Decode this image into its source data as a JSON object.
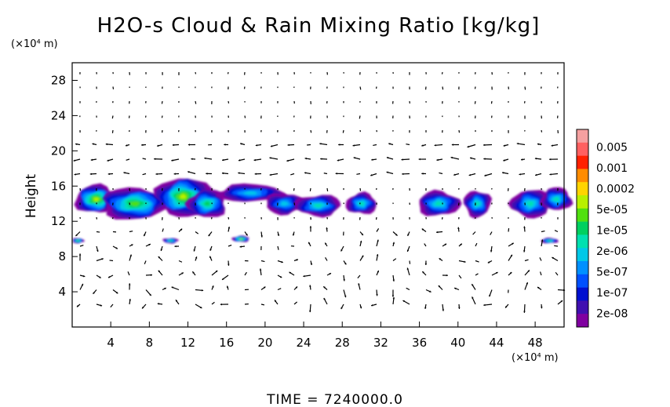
{
  "chart_data": {
    "type": "heatmap",
    "title": "H2O-s Cloud & Rain Mixing Ratio [kg/kg]",
    "ylabel": "Height",
    "y_unit": "(×10⁴ m)",
    "x_unit": "(×10⁴ m)",
    "xlim": [
      0,
      51
    ],
    "ylim": [
      0,
      30
    ],
    "x_ticks": [
      4,
      8,
      12,
      16,
      20,
      24,
      28,
      32,
      36,
      40,
      44,
      48
    ],
    "y_ticks": [
      4,
      8,
      12,
      16,
      20,
      24,
      28
    ],
    "colorbar": {
      "labels": [
        "0.005",
        "0.001",
        "0.0002",
        "5e-05",
        "1e-05",
        "2e-06",
        "5e-07",
        "1e-07",
        "2e-08"
      ],
      "colors": [
        "#f5a0a0",
        "#ff6060",
        "#ff2000",
        "#ff8c00",
        "#ffd400",
        "#b8f000",
        "#50e010",
        "#00d060",
        "#00e0b0",
        "#00c8e8",
        "#0090ff",
        "#0050ff",
        "#0010d0",
        "#4010b0",
        "#8000a0"
      ]
    },
    "cloud_regions": [
      {
        "x": 2.5,
        "y": 14.5,
        "rx": 2.2,
        "ry": 1.6,
        "level": 9
      },
      {
        "x": 6.5,
        "y": 14.0,
        "rx": 3.5,
        "ry": 1.8,
        "level": 8
      },
      {
        "x": 11.5,
        "y": 14.8,
        "rx": 2.8,
        "ry": 2.2,
        "level": 9
      },
      {
        "x": 14.0,
        "y": 14.0,
        "rx": 2.0,
        "ry": 1.6,
        "level": 7
      },
      {
        "x": 18.5,
        "y": 15.2,
        "rx": 3.5,
        "ry": 1.0,
        "level": 5
      },
      {
        "x": 22.0,
        "y": 14.0,
        "rx": 2.0,
        "ry": 1.2,
        "level": 5
      },
      {
        "x": 25.5,
        "y": 13.8,
        "rx": 2.4,
        "ry": 1.2,
        "level": 6
      },
      {
        "x": 30.0,
        "y": 14.0,
        "rx": 1.6,
        "ry": 1.2,
        "level": 6
      },
      {
        "x": 38.0,
        "y": 14.0,
        "rx": 2.2,
        "ry": 1.4,
        "level": 6
      },
      {
        "x": 42.0,
        "y": 14.0,
        "rx": 1.4,
        "ry": 1.5,
        "level": 6
      },
      {
        "x": 47.5,
        "y": 14.0,
        "rx": 2.0,
        "ry": 1.6,
        "level": 6
      },
      {
        "x": 50.2,
        "y": 14.5,
        "rx": 1.6,
        "ry": 1.3,
        "level": 6
      },
      {
        "x": 0.6,
        "y": 9.8,
        "rx": 0.6,
        "ry": 0.3,
        "level": 8
      },
      {
        "x": 10.2,
        "y": 9.8,
        "rx": 0.8,
        "ry": 0.3,
        "level": 7
      },
      {
        "x": 17.5,
        "y": 10.0,
        "rx": 0.9,
        "ry": 0.35,
        "level": 9
      },
      {
        "x": 49.5,
        "y": 9.8,
        "rx": 0.9,
        "ry": 0.3,
        "level": 7
      }
    ],
    "time_label": "TIME = 7240000.0"
  }
}
